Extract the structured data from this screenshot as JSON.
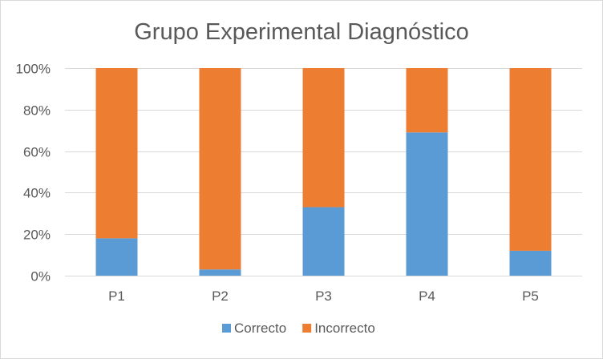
{
  "chart_data": {
    "type": "bar",
    "stacked": true,
    "normalized": true,
    "title": "Grupo Experimental Diagnóstico",
    "xlabel": "",
    "ylabel": "",
    "categories": [
      "P1",
      "P2",
      "P3",
      "P4",
      "P5"
    ],
    "series": [
      {
        "name": "Correcto",
        "color": "#5b9bd5",
        "values": [
          18,
          3,
          33,
          69,
          12
        ]
      },
      {
        "name": "Incorrecto",
        "color": "#ed7d31",
        "values": [
          82,
          97,
          67,
          31,
          88
        ]
      }
    ],
    "ylim": [
      0,
      100
    ],
    "yticks": [
      0,
      20,
      40,
      60,
      80,
      100
    ],
    "ytick_labels": [
      "0%",
      "20%",
      "40%",
      "60%",
      "80%",
      "100%"
    ],
    "grid": true,
    "legend": "bottom-center"
  }
}
